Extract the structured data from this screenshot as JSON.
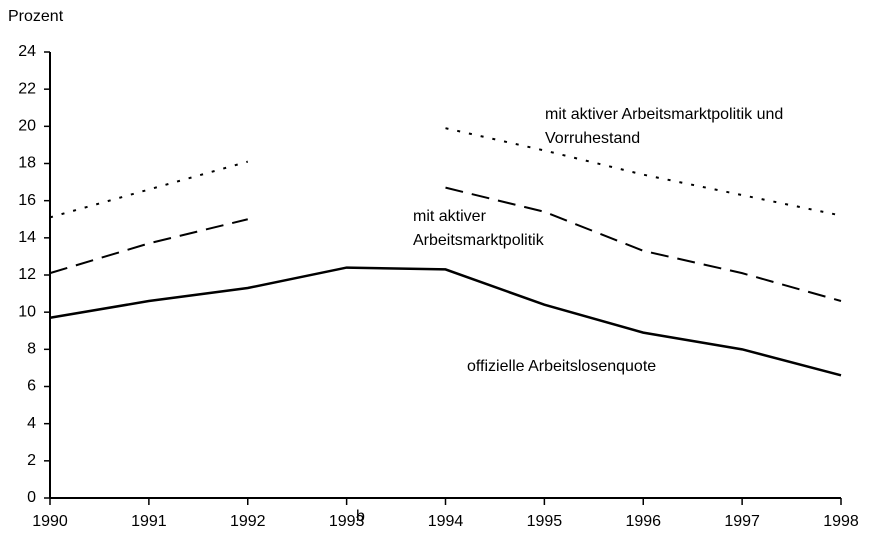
{
  "chart_data": {
    "type": "line",
    "y_axis_label": "Prozent",
    "annotation": "b",
    "x": [
      1990,
      1991,
      1992,
      1993,
      1994,
      1995,
      1996,
      1997,
      1998
    ],
    "xlim": [
      1990,
      1998
    ],
    "xticks": [
      1990,
      1991,
      1992,
      1993,
      1994,
      1995,
      1996,
      1997,
      1998
    ],
    "ylim": [
      0,
      24
    ],
    "yticks": [
      0,
      2,
      4,
      6,
      8,
      10,
      12,
      14,
      16,
      18,
      20,
      22,
      24
    ],
    "grid": false,
    "series": [
      {
        "name": "offizielle Arbeitslosenquote",
        "color": "#000000",
        "style": "solid",
        "values": [
          9.7,
          10.6,
          11.3,
          12.4,
          12.3,
          10.4,
          8.9,
          8.0,
          6.6
        ]
      },
      {
        "name": "mit aktiver Arbeitsmarktpolitik",
        "color": "#000000",
        "style": "dashed",
        "values": [
          12.1,
          13.7,
          15.0,
          null,
          16.7,
          15.4,
          13.3,
          12.1,
          10.6
        ]
      },
      {
        "name": "mit aktiver Arbeitsmarktpolitik und Vorruhestand",
        "color": "#000000",
        "style": "dotted",
        "values": [
          15.1,
          16.6,
          18.1,
          null,
          19.9,
          18.7,
          17.4,
          16.3,
          15.2
        ]
      }
    ]
  }
}
